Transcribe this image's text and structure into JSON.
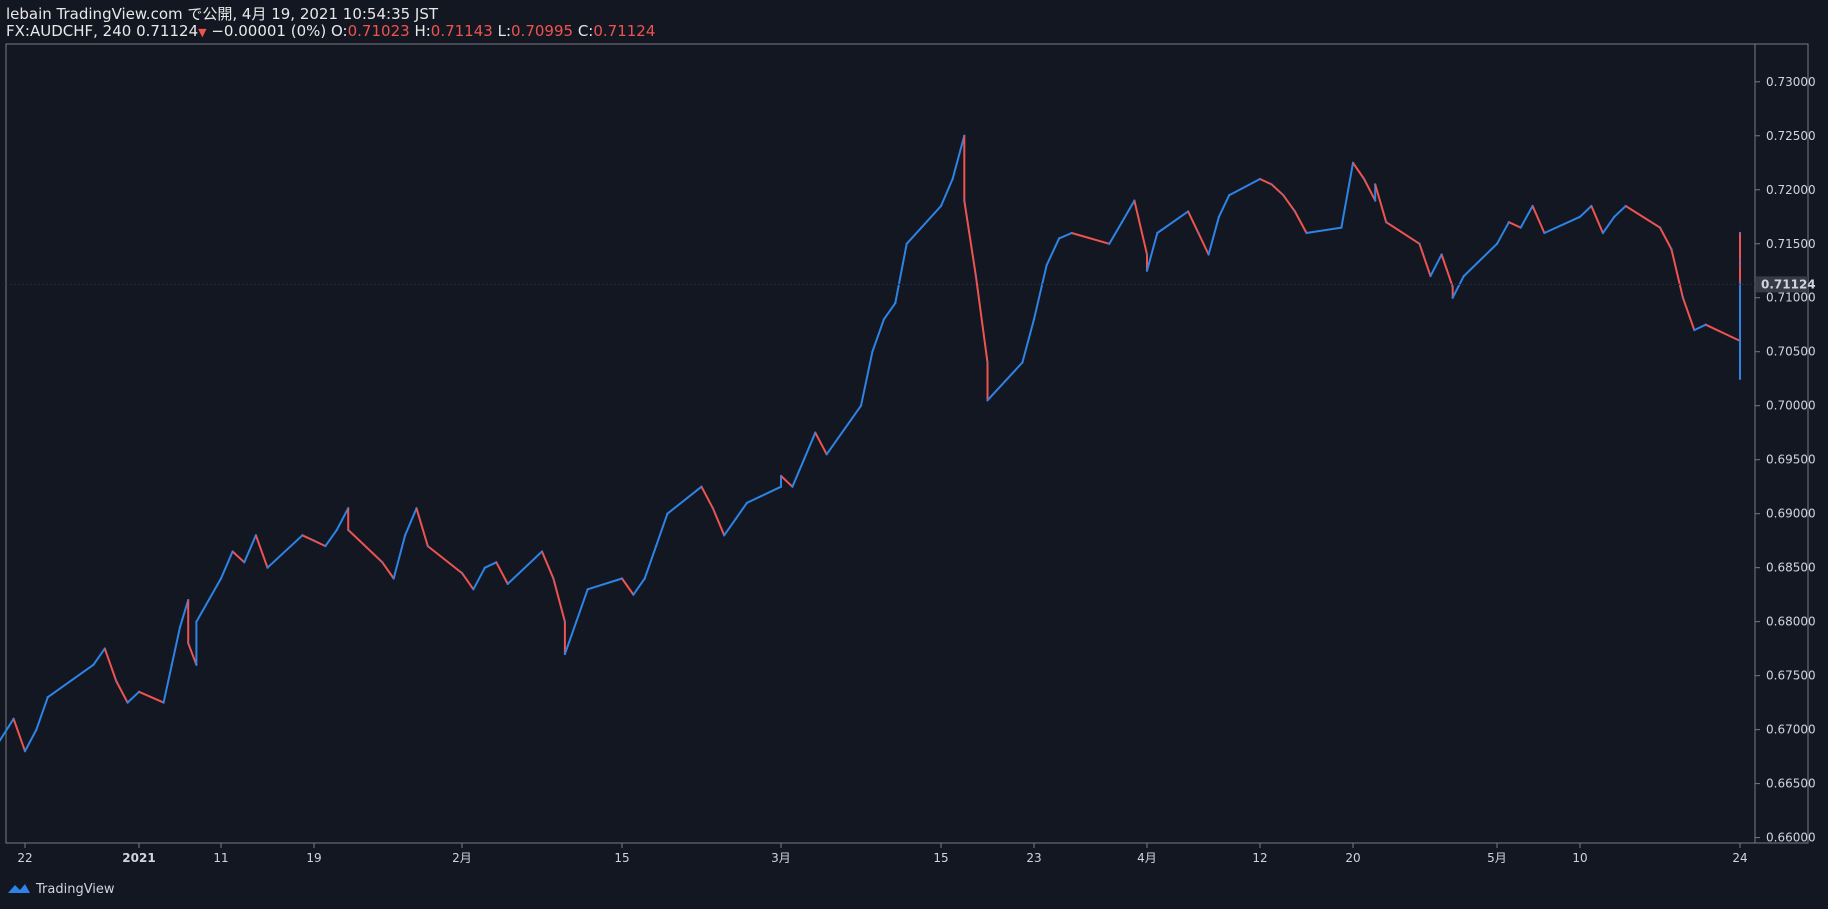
{
  "header": {
    "line1": "lebain TradingView.com で公開, 4月 19, 2021 10:54:35 JST",
    "symbol": "FX:AUDCHF, 240",
    "last": "0.71124",
    "change": "−0.00001 (0%)",
    "o_label": "O:",
    "o_value": "0.71023",
    "h_label": "H:",
    "h_value": "0.71143",
    "l_label": "L:",
    "l_value": "0.70995",
    "c_label": "C:",
    "c_value": "0.71124"
  },
  "brand": {
    "name": "TradingView",
    "icon": "tradingview-logo-icon"
  },
  "colors": {
    "background": "#131722",
    "up": "#2d83e6",
    "down": "#ef5350",
    "axis_line": "#787b86",
    "price_label_bg": "#363a45"
  },
  "chart_data": {
    "type": "line",
    "symbol": "FX:AUDCHF",
    "interval": "240",
    "ylim": [
      0.6595,
      0.7335
    ],
    "y_ticks": [
      "0.66000",
      "0.66500",
      "0.67000",
      "0.67500",
      "0.68000",
      "0.68500",
      "0.69000",
      "0.69500",
      "0.70000",
      "0.70500",
      "0.71000",
      "0.71500",
      "0.72000",
      "0.72500",
      "0.73000"
    ],
    "y_tick_values": [
      0.66,
      0.665,
      0.67,
      0.675,
      0.68,
      0.685,
      0.69,
      0.695,
      0.7,
      0.705,
      0.71,
      0.715,
      0.72,
      0.725,
      0.73
    ],
    "x_ticks": [
      {
        "label": "22",
        "date": "2020-12-22"
      },
      {
        "label": "2021",
        "date": "2021-01-01"
      },
      {
        "label": "11",
        "date": "2021-01-11"
      },
      {
        "label": "19",
        "date": "2021-01-19"
      },
      {
        "label": "2月",
        "date": "2021-02-01"
      },
      {
        "label": "15",
        "date": "2021-02-15"
      },
      {
        "label": "3月",
        "date": "2021-03-01"
      },
      {
        "label": "15",
        "date": "2021-03-15"
      },
      {
        "label": "23",
        "date": "2021-03-23"
      },
      {
        "label": "4月",
        "date": "2021-04-01"
      },
      {
        "label": "12",
        "date": "2021-04-12"
      },
      {
        "label": "20",
        "date": "2021-04-20"
      },
      {
        "label": "5月",
        "date": "2021-05-03"
      },
      {
        "label": "10",
        "date": "2021-05-10"
      },
      {
        "label": "24",
        "date": "2021-05-24"
      }
    ],
    "last_price": "0.71124",
    "last_price_value": 0.71124,
    "series": [
      {
        "values": [
          [
            "2020-12-17",
            0.674
          ],
          [
            "2020-12-18",
            0.6705
          ],
          [
            "2020-12-18",
            0.666
          ],
          [
            "2020-12-21",
            0.671
          ],
          [
            "2020-12-22",
            0.668
          ],
          [
            "2020-12-23",
            0.67
          ],
          [
            "2020-12-24",
            0.673
          ],
          [
            "2020-12-28",
            0.676
          ],
          [
            "2020-12-29",
            0.6775
          ],
          [
            "2020-12-30",
            0.6745
          ],
          [
            "2020-12-31",
            0.6725
          ],
          [
            "2021-01-01",
            0.6735
          ],
          [
            "2021-01-04",
            0.6725
          ],
          [
            "2021-01-05",
            0.676
          ],
          [
            "2021-01-06",
            0.6795
          ],
          [
            "2021-01-07",
            0.682
          ],
          [
            "2021-01-07",
            0.678
          ],
          [
            "2021-01-08",
            0.676
          ],
          [
            "2021-01-08",
            0.68
          ],
          [
            "2021-01-11",
            0.684
          ],
          [
            "2021-01-12",
            0.6865
          ],
          [
            "2021-01-13",
            0.6855
          ],
          [
            "2021-01-14",
            0.688
          ],
          [
            "2021-01-15",
            0.685
          ],
          [
            "2021-01-18",
            0.688
          ],
          [
            "2021-01-19",
            0.6875
          ],
          [
            "2021-01-20",
            0.687
          ],
          [
            "2021-01-21",
            0.6885
          ],
          [
            "2021-01-22",
            0.6905
          ],
          [
            "2021-01-22",
            0.6885
          ],
          [
            "2021-01-25",
            0.6855
          ],
          [
            "2021-01-26",
            0.684
          ],
          [
            "2021-01-27",
            0.688
          ],
          [
            "2021-01-28",
            0.6905
          ],
          [
            "2021-01-29",
            0.687
          ],
          [
            "2021-02-01",
            0.6845
          ],
          [
            "2021-02-02",
            0.683
          ],
          [
            "2021-02-03",
            0.685
          ],
          [
            "2021-02-04",
            0.6855
          ],
          [
            "2021-02-05",
            0.6835
          ],
          [
            "2021-02-08",
            0.6865
          ],
          [
            "2021-02-09",
            0.684
          ],
          [
            "2021-02-10",
            0.68
          ],
          [
            "2021-02-10",
            0.677
          ],
          [
            "2021-02-11",
            0.68
          ],
          [
            "2021-02-12",
            0.683
          ],
          [
            "2021-02-15",
            0.684
          ],
          [
            "2021-02-16",
            0.6825
          ],
          [
            "2021-02-17",
            0.684
          ],
          [
            "2021-02-18",
            0.687
          ],
          [
            "2021-02-19",
            0.69
          ],
          [
            "2021-02-22",
            0.6925
          ],
          [
            "2021-02-23",
            0.6905
          ],
          [
            "2021-02-24",
            0.688
          ],
          [
            "2021-02-25",
            0.6895
          ],
          [
            "2021-02-26",
            0.691
          ],
          [
            "2021-03-01",
            0.6925
          ],
          [
            "2021-03-01",
            0.6935
          ],
          [
            "2021-03-02",
            0.6925
          ],
          [
            "2021-03-03",
            0.695
          ],
          [
            "2021-03-04",
            0.6975
          ],
          [
            "2021-03-05",
            0.6955
          ],
          [
            "2021-03-08",
            0.7
          ],
          [
            "2021-03-09",
            0.705
          ],
          [
            "2021-03-10",
            0.708
          ],
          [
            "2021-03-11",
            0.7095
          ],
          [
            "2021-03-12",
            0.715
          ],
          [
            "2021-03-15",
            0.7185
          ],
          [
            "2021-03-16",
            0.721
          ],
          [
            "2021-03-17",
            0.725
          ],
          [
            "2021-03-17",
            0.719
          ],
          [
            "2021-03-18",
            0.712
          ],
          [
            "2021-03-19",
            0.704
          ],
          [
            "2021-03-19",
            0.7005
          ],
          [
            "2021-03-22",
            0.704
          ],
          [
            "2021-03-23",
            0.708
          ],
          [
            "2021-03-24",
            0.713
          ],
          [
            "2021-03-25",
            0.7155
          ],
          [
            "2021-03-26",
            0.716
          ],
          [
            "2021-03-29",
            0.715
          ],
          [
            "2021-03-30",
            0.717
          ],
          [
            "2021-03-31",
            0.719
          ],
          [
            "2021-04-01",
            0.714
          ],
          [
            "2021-04-01",
            0.7125
          ],
          [
            "2021-04-02",
            0.716
          ],
          [
            "2021-04-05",
            0.718
          ],
          [
            "2021-04-06",
            0.716
          ],
          [
            "2021-04-07",
            0.714
          ],
          [
            "2021-04-08",
            0.7175
          ],
          [
            "2021-04-09",
            0.7195
          ],
          [
            "2021-04-12",
            0.721
          ],
          [
            "2021-04-13",
            0.7205
          ],
          [
            "2021-04-14",
            0.7195
          ],
          [
            "2021-04-15",
            0.718
          ],
          [
            "2021-04-16",
            0.716
          ],
          [
            "2021-04-19",
            0.7165
          ],
          [
            "2021-04-20",
            0.7225
          ],
          [
            "2021-04-21",
            0.721
          ],
          [
            "2021-04-22",
            0.719
          ],
          [
            "2021-04-22",
            0.7205
          ],
          [
            "2021-04-23",
            0.717
          ],
          [
            "2021-04-26",
            0.715
          ],
          [
            "2021-04-27",
            0.712
          ],
          [
            "2021-04-28",
            0.714
          ],
          [
            "2021-04-29",
            0.711
          ],
          [
            "2021-04-29",
            0.71
          ],
          [
            "2021-04-30",
            0.712
          ],
          [
            "2021-05-03",
            0.715
          ],
          [
            "2021-05-04",
            0.717
          ],
          [
            "2021-05-05",
            0.7165
          ],
          [
            "2021-05-06",
            0.7185
          ],
          [
            "2021-05-07",
            0.716
          ],
          [
            "2021-05-10",
            0.7175
          ],
          [
            "2021-05-11",
            0.7185
          ],
          [
            "2021-05-12",
            0.716
          ],
          [
            "2021-05-13",
            0.7175
          ],
          [
            "2021-05-14",
            0.7185
          ],
          [
            "2021-05-17",
            0.7165
          ],
          [
            "2021-05-18",
            0.7145
          ],
          [
            "2021-05-19",
            0.71
          ],
          [
            "2021-05-20",
            0.707
          ],
          [
            "2021-05-21",
            0.7075
          ],
          [
            "2021-05-24",
            0.706
          ],
          [
            "2021-05-25",
            0.7045
          ],
          [
            "2021-05-26",
            0.7035
          ],
          [
            "2021-05-27",
            0.7025
          ],
          [
            "2021-05-28",
            0.703
          ],
          [
            "2021-05-31",
            0.706
          ],
          [
            "2021-06-01",
            0.713
          ],
          [
            "2021-06-02",
            0.716
          ],
          [
            "2021-06-03",
            0.7135
          ],
          [
            "2021-06-04",
            0.7115
          ],
          [
            "2021-06-05",
            0.71124
          ]
        ]
      }
    ]
  }
}
